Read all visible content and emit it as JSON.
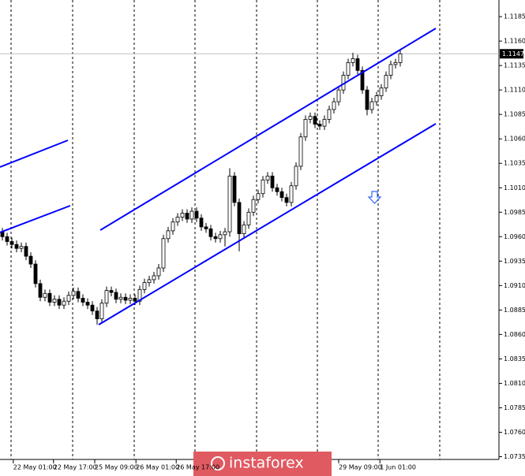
{
  "chart_data": {
    "type": "candlestick",
    "series": [
      {
        "open": [
          1.0965,
          1.096,
          1.0955,
          1.0952,
          1.0948,
          1.095,
          1.094,
          1.0932,
          1.0912,
          1.0898,
          1.0902,
          1.0893,
          1.0896,
          1.089,
          1.0894,
          1.09,
          1.0904,
          1.0897,
          1.0893,
          1.089,
          1.0884,
          1.0876,
          1.0892,
          1.0905,
          1.0903,
          1.0896,
          1.0898,
          1.0895,
          1.0897,
          1.0894,
          1.0906,
          1.0913,
          1.0916,
          1.092,
          1.0928,
          1.0958,
          1.0966,
          1.0975,
          1.098,
          1.0984,
          1.0978,
          1.0986,
          1.0979,
          1.097,
          1.0968,
          1.096,
          1.0958,
          1.0962,
          1.0965,
          1.1022,
          1.0995,
          1.0963,
          1.0972,
          1.0985,
          1.0998,
          1.1004,
          1.1018,
          1.1022,
          1.101,
          1.1006,
          1.1,
          1.0995,
          1.1012,
          1.1032,
          1.1062,
          1.108,
          1.1083,
          1.1075,
          1.1073,
          1.108,
          1.109,
          1.1098,
          1.111,
          1.1125,
          1.1138,
          1.1142,
          1.113,
          1.111,
          1.109,
          1.1098,
          1.1104,
          1.1112,
          1.1125,
          1.1136,
          1.1138
        ],
        "high": [
          1.0969,
          1.0964,
          1.0959,
          1.0956,
          1.0954,
          1.0954,
          1.0944,
          1.0936,
          1.0916,
          1.0906,
          1.0906,
          1.09,
          1.09,
          1.0898,
          1.0904,
          1.0908,
          1.0908,
          1.0901,
          1.0897,
          1.0894,
          1.0888,
          1.0896,
          1.0909,
          1.0909,
          1.0907,
          1.0902,
          1.0902,
          1.0901,
          1.0901,
          1.091,
          1.0917,
          1.092,
          1.0924,
          1.0932,
          1.0962,
          1.097,
          1.0979,
          1.0984,
          1.0988,
          1.0988,
          1.099,
          1.099,
          1.0983,
          1.0974,
          1.0972,
          1.0964,
          1.0966,
          1.0969,
          1.103,
          1.1026,
          1.0999,
          1.0976,
          1.0989,
          1.1002,
          1.1008,
          1.1022,
          1.1026,
          1.1026,
          1.1014,
          1.101,
          1.1004,
          1.1016,
          1.1036,
          1.1066,
          1.1084,
          1.1087,
          1.1087,
          1.1079,
          1.1084,
          1.1094,
          1.1102,
          1.1114,
          1.1129,
          1.1142,
          1.1148,
          1.1146,
          1.1134,
          1.1114,
          1.1102,
          1.1108,
          1.1116,
          1.1129,
          1.114,
          1.1142,
          1.1151
        ],
        "low": [
          1.0956,
          1.0951,
          1.0948,
          1.0944,
          1.0944,
          1.0936,
          1.0928,
          1.0908,
          1.0894,
          1.0894,
          1.0889,
          1.0889,
          1.0886,
          1.0886,
          1.089,
          1.0896,
          1.0893,
          1.0889,
          1.0886,
          1.088,
          1.087,
          1.0872,
          1.0888,
          1.0899,
          1.0892,
          1.0892,
          1.0891,
          1.0891,
          1.089,
          1.089,
          1.0902,
          1.0909,
          1.0912,
          1.0916,
          1.0924,
          1.0954,
          1.0962,
          1.0971,
          1.0976,
          1.0974,
          1.0974,
          1.0975,
          1.0966,
          1.0964,
          1.0956,
          1.0954,
          1.0954,
          1.095,
          1.096,
          1.0991,
          1.0945,
          1.0959,
          1.0968,
          1.0981,
          1.0994,
          1.1,
          1.1014,
          1.1006,
          1.1002,
          1.0996,
          1.0991,
          1.0991,
          1.1008,
          1.1028,
          1.1058,
          1.1076,
          1.1071,
          1.1069,
          1.1069,
          1.1076,
          1.1086,
          1.1094,
          1.1106,
          1.1121,
          1.1134,
          1.1126,
          1.1106,
          1.1084,
          1.1086,
          1.1094,
          1.11,
          1.1108,
          1.1121,
          1.1132,
          1.1134
        ],
        "close": [
          1.096,
          1.0955,
          1.0952,
          1.0948,
          1.095,
          1.094,
          1.0932,
          1.0912,
          1.0898,
          1.0902,
          1.0893,
          1.0896,
          1.089,
          1.0894,
          1.09,
          1.0904,
          1.0897,
          1.0893,
          1.089,
          1.0884,
          1.0876,
          1.0892,
          1.0905,
          1.0903,
          1.0896,
          1.0898,
          1.0895,
          1.0897,
          1.0894,
          1.0906,
          1.0913,
          1.0916,
          1.092,
          1.0928,
          1.0958,
          1.0966,
          1.0975,
          1.098,
          1.0984,
          1.0978,
          1.0986,
          1.0979,
          1.097,
          1.0968,
          1.096,
          1.0958,
          1.0962,
          1.0965,
          1.1022,
          1.0995,
          1.0963,
          1.0972,
          1.0985,
          1.0998,
          1.1004,
          1.1018,
          1.1022,
          1.101,
          1.1006,
          1.1,
          1.0995,
          1.1012,
          1.1032,
          1.1062,
          1.108,
          1.1083,
          1.1075,
          1.1073,
          1.108,
          1.109,
          1.1098,
          1.111,
          1.1125,
          1.1138,
          1.1142,
          1.113,
          1.111,
          1.109,
          1.1098,
          1.1104,
          1.1112,
          1.1125,
          1.1136,
          1.1138,
          1.1147
        ]
      }
    ],
    "ylim": [
      1.0733,
      1.1202
    ],
    "yticks": [
      1.0735,
      {
        "value": 1.076,
        "label": "1.0760"
      },
      1.0785,
      {
        "value": 1.081,
        "label": "1.0810"
      },
      1.0835,
      {
        "value": 1.086,
        "label": "1.0860"
      },
      1.0885,
      {
        "value": 1.091,
        "label": "1.0910"
      },
      1.0935,
      {
        "value": 1.096,
        "label": "1.0960"
      },
      1.0985,
      {
        "value": 1.101,
        "label": "1.1010"
      },
      1.1035,
      {
        "value": 1.106,
        "label": "1.1060"
      },
      1.1085,
      {
        "value": 1.111,
        "label": "1.1110"
      },
      1.1135,
      {
        "value": 1.116,
        "label": "1.1160"
      },
      1.1185
    ],
    "xticks": [
      {
        "value": 2.3,
        "label": "22 May 01:00"
      },
      {
        "value": 10.8,
        "label": "22 May 17:00"
      },
      {
        "value": 19.5,
        "label": "25 May 09:00"
      },
      {
        "value": 28.2,
        "label": "26 May 01:00"
      },
      {
        "value": 36.7,
        "label": "26 May 17:00"
      },
      {
        "value": 71,
        "label": "29 May 09:00"
      },
      {
        "value": 79.7,
        "label": "1 Jun 01:00"
      }
    ],
    "last_price": 1.1147,
    "watermark": "instaforex"
  }
}
